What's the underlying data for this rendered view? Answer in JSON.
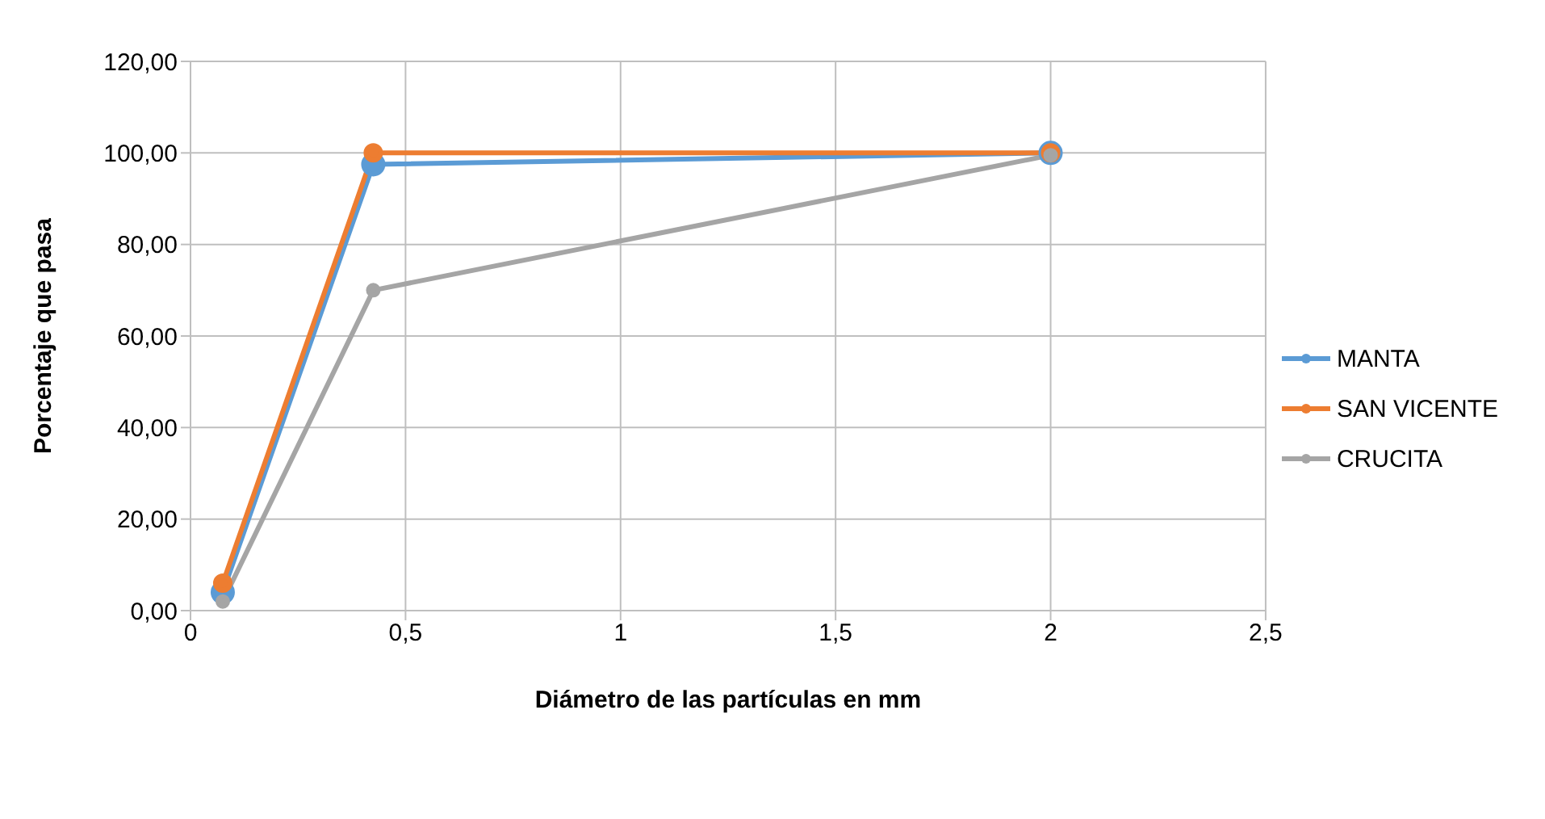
{
  "chart_data": {
    "type": "line",
    "xlabel": "Diámetro de las partículas en mm",
    "ylabel": "Porcentaje que pasa",
    "x": [
      0.075,
      0.425,
      2
    ],
    "series": [
      {
        "name": "MANTA",
        "color": "#5b9bd5",
        "values": [
          4,
          97.5,
          100
        ]
      },
      {
        "name": "SAN VICENTE",
        "color": "#ed7d31",
        "values": [
          6,
          100,
          100
        ]
      },
      {
        "name": "CRUCITA",
        "color": "#a5a5a5",
        "values": [
          2,
          70,
          99.5
        ]
      }
    ],
    "xlim": [
      0,
      2.5
    ],
    "xticks": [
      {
        "value": 0,
        "label": "0"
      },
      {
        "value": 0.5,
        "label": "0,5"
      },
      {
        "value": 1,
        "label": "1"
      },
      {
        "value": 1.5,
        "label": "1,5"
      },
      {
        "value": 2,
        "label": "2"
      },
      {
        "value": 2.5,
        "label": "2,5"
      }
    ],
    "ylim": [
      0,
      120
    ],
    "yticks": [
      {
        "value": 0,
        "label": "0,00"
      },
      {
        "value": 20,
        "label": "20,00"
      },
      {
        "value": 40,
        "label": "40,00"
      },
      {
        "value": 60,
        "label": "60,00"
      },
      {
        "value": 80,
        "label": "80,00"
      },
      {
        "value": 100,
        "label": "100,00"
      },
      {
        "value": 120,
        "label": "120,00"
      }
    ],
    "grid": true,
    "legend": "right",
    "marker": "circle",
    "line_style": "solid"
  }
}
